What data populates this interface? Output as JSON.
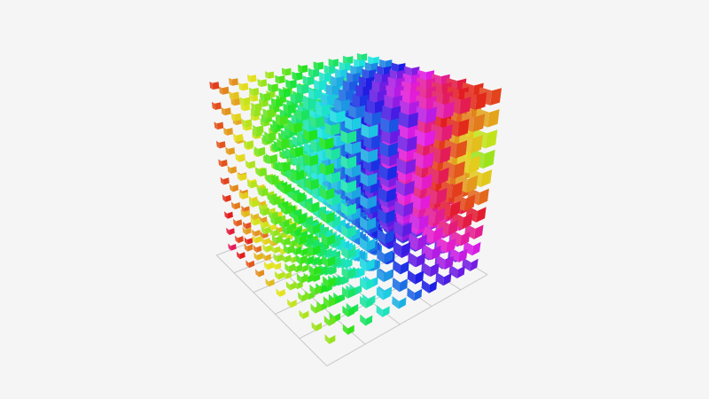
{
  "chart_data": {
    "type": "scatter3D",
    "symbol": "cube",
    "title": "",
    "axes": {
      "x": {
        "name": "",
        "range": [
          0,
          9
        ]
      },
      "y": {
        "name": "",
        "range": [
          0,
          9
        ]
      },
      "z": {
        "name": "",
        "range": [
          0,
          9
        ]
      }
    },
    "grid3D": {
      "floor_grid": true,
      "axis_labels_visible": false
    },
    "x_values": [
      0,
      1,
      2,
      3,
      4,
      5,
      6,
      7,
      8,
      9
    ],
    "y_values": [
      0,
      1,
      2,
      3,
      4,
      5,
      6,
      7,
      8,
      9
    ],
    "z_values": [
      0,
      1,
      2,
      3,
      4,
      5,
      6,
      7,
      8,
      9
    ],
    "color_scale": [
      "#e53935",
      "#e6a03a",
      "#dede3a",
      "#5ee63a",
      "#3ae6d0",
      "#3a5ee6",
      "#8a3ae6",
      "#e63ad6",
      "#e63a6a"
    ],
    "background": "#f5f5f5",
    "grid_color": "#c8c8c8"
  }
}
